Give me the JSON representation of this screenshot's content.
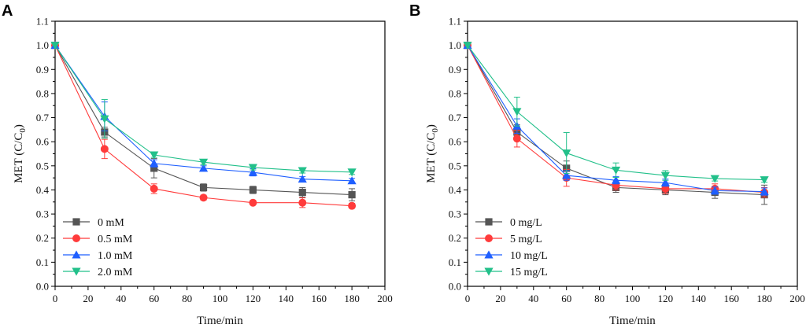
{
  "chart_data": [
    {
      "panel": "A",
      "type": "line",
      "xlabel": "Time/min",
      "ylabel": "MET (C/C0)",
      "ylabel_main": "MET (C/C",
      "ylabel_sub": "0",
      "ylabel_close": ")",
      "xlim": [
        0,
        200
      ],
      "ylim": [
        0.0,
        1.1
      ],
      "x_ticks": [
        "0",
        "20",
        "40",
        "60",
        "80",
        "100",
        "120",
        "140",
        "160",
        "180",
        "200"
      ],
      "y_ticks": [
        "0.0",
        "0.1",
        "0.2",
        "0.3",
        "0.4",
        "0.5",
        "0.6",
        "0.7",
        "0.8",
        "0.9",
        "1.0",
        "1.1"
      ],
      "legend_position": "bottom-left",
      "x": [
        0,
        30,
        60,
        90,
        120,
        150,
        180
      ],
      "series": [
        {
          "name": "0  mM",
          "color": "#555555",
          "marker": "square",
          "values": [
            1.0,
            0.64,
            0.49,
            0.41,
            0.4,
            0.39,
            0.38
          ],
          "errors": [
            0,
            0.02,
            0.04,
            0.015,
            0.015,
            0.02,
            0.025
          ]
        },
        {
          "name": "0.5 mM",
          "color": "#ff3b3b",
          "marker": "circle",
          "values": [
            1.0,
            0.57,
            0.405,
            0.368,
            0.347,
            0.347,
            0.334
          ],
          "errors": [
            0,
            0.04,
            0.02,
            0.01,
            0.005,
            0.02,
            0.01
          ]
        },
        {
          "name": "1.0 mM",
          "color": "#1f5fff",
          "marker": "triangle-up",
          "values": [
            1.0,
            0.705,
            0.51,
            0.49,
            0.473,
            0.445,
            0.438
          ],
          "errors": [
            0,
            0.06,
            0.015,
            0.01,
            0.015,
            0.01,
            0.01
          ]
        },
        {
          "name": "2.0 mM",
          "color": "#22c08a",
          "marker": "triangle-down",
          "values": [
            1.0,
            0.695,
            0.545,
            0.515,
            0.493,
            0.48,
            0.474
          ],
          "errors": [
            0,
            0.08,
            0.01,
            0.01,
            0.01,
            0.01,
            0.01
          ]
        }
      ]
    },
    {
      "panel": "B",
      "type": "line",
      "xlabel": "Time/min",
      "ylabel": "MET (C/C0)",
      "ylabel_main": "MET (C/C",
      "ylabel_sub": "0",
      "ylabel_close": ")",
      "xlim": [
        0,
        200
      ],
      "ylim": [
        0.0,
        1.1
      ],
      "x_ticks": [
        "0",
        "20",
        "40",
        "60",
        "80",
        "100",
        "120",
        "140",
        "160",
        "180",
        "200"
      ],
      "y_ticks": [
        "0.0",
        "0.1",
        "0.2",
        "0.3",
        "0.4",
        "0.5",
        "0.6",
        "0.7",
        "0.8",
        "0.9",
        "1.0",
        "1.1"
      ],
      "legend_position": "bottom-left",
      "x": [
        0,
        30,
        60,
        90,
        120,
        150,
        180
      ],
      "series": [
        {
          "name": "0 mg/L",
          "color": "#555555",
          "marker": "square",
          "values": [
            1.0,
            0.64,
            0.49,
            0.41,
            0.4,
            0.39,
            0.38
          ],
          "errors": [
            0,
            0.03,
            0.03,
            0.02,
            0.02,
            0.025,
            0.04
          ]
        },
        {
          "name": "5 mg/L",
          "color": "#ff3b3b",
          "marker": "circle",
          "values": [
            1.0,
            0.613,
            0.45,
            0.42,
            0.405,
            0.405,
            0.39
          ],
          "errors": [
            0,
            0.035,
            0.035,
            0.02,
            0.02,
            0.02,
            0.02
          ]
        },
        {
          "name": "10 mg/L",
          "color": "#1f5fff",
          "marker": "triangle-up",
          "values": [
            1.0,
            0.665,
            0.46,
            0.44,
            0.43,
            0.397,
            0.393
          ],
          "errors": [
            0,
            0.03,
            0.02,
            0.015,
            0.015,
            0.015,
            0.015
          ]
        },
        {
          "name": "15 mg/L",
          "color": "#22c08a",
          "marker": "triangle-down",
          "values": [
            1.0,
            0.725,
            0.553,
            0.482,
            0.46,
            0.447,
            0.442
          ],
          "errors": [
            0,
            0.06,
            0.085,
            0.03,
            0.02,
            0.01,
            0.01
          ]
        }
      ]
    }
  ]
}
